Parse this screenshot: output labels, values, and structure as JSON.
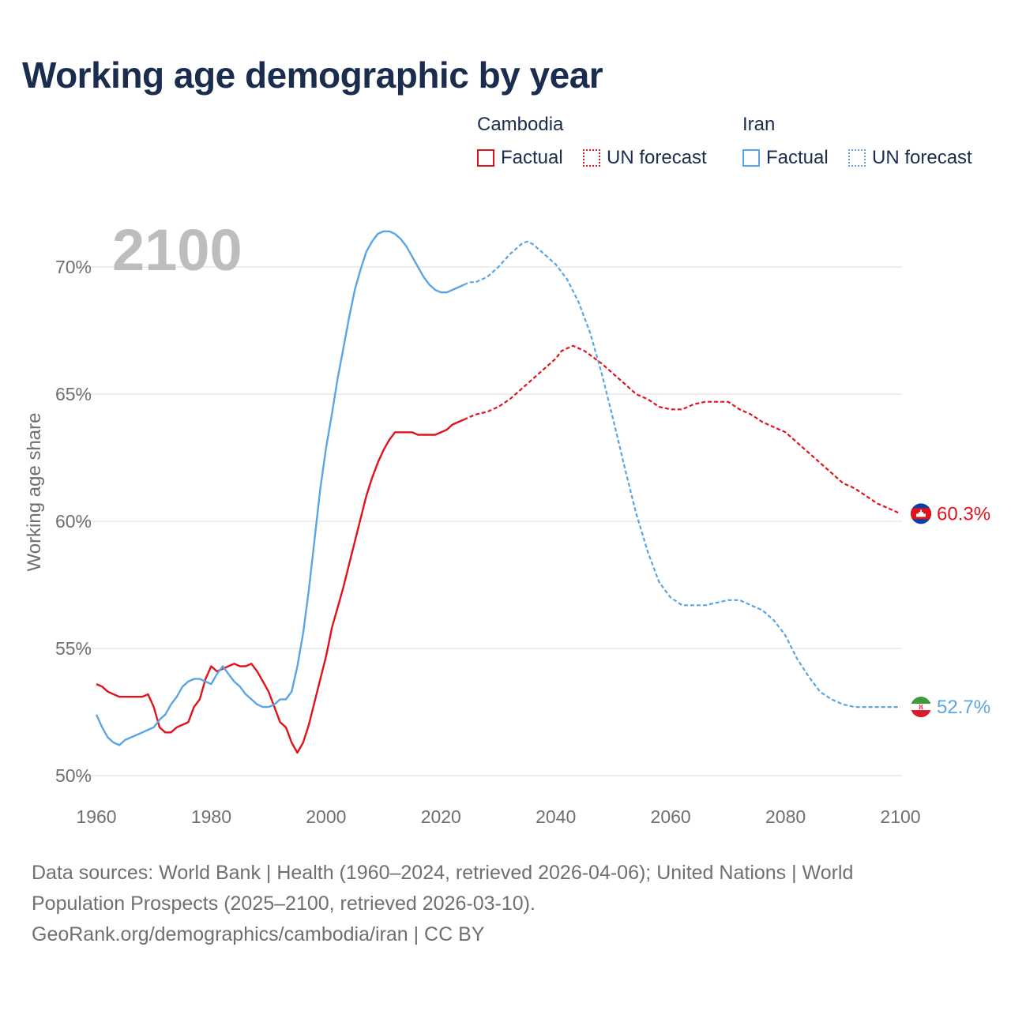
{
  "title": "Working age demographic by year",
  "year_label": "2100",
  "legend": {
    "cambodia_title": "Cambodia",
    "iran_title": "Iran",
    "factual": "Factual",
    "forecast": "UN forecast"
  },
  "footer": {
    "line1": "Data sources: World Bank | Health (1960–2024, retrieved 2026-04-06); United Nations | World",
    "line2": "Population Prospects (2025–2100, retrieved 2026-03-10).",
    "line3": "GeoRank.org/demographics/cambodia/iran | CC BY"
  },
  "colors": {
    "cambodia": "#e0131b",
    "iran": "#5aa5e3",
    "title": "#1b2d4f"
  },
  "chart_data": {
    "type": "line",
    "title": "Working age demographic by year",
    "xlabel": "",
    "ylabel": "Working age share",
    "xlim": [
      1960,
      2100
    ],
    "ylim": [
      50,
      72
    ],
    "x_ticks": [
      1960,
      1980,
      2000,
      2020,
      2040,
      2060,
      2080,
      2100
    ],
    "x_tick_labels": [
      "1960",
      "1980",
      "2000",
      "2020",
      "2040",
      "2060",
      "2080",
      "2100"
    ],
    "y_ticks": [
      50,
      55,
      60,
      65,
      70
    ],
    "y_tick_labels": [
      "50%",
      "55%",
      "60%",
      "65%",
      "70%"
    ],
    "factual_until": 2024,
    "series": [
      {
        "name": "Cambodia",
        "color": "#e0131b",
        "end_label": "60.3%",
        "points": [
          [
            1960,
            53.6
          ],
          [
            1961,
            53.5
          ],
          [
            1962,
            53.3
          ],
          [
            1963,
            53.2
          ],
          [
            1964,
            53.1
          ],
          [
            1965,
            53.1
          ],
          [
            1966,
            53.1
          ],
          [
            1967,
            53.1
          ],
          [
            1968,
            53.1
          ],
          [
            1969,
            53.2
          ],
          [
            1970,
            52.7
          ],
          [
            1971,
            51.9
          ],
          [
            1972,
            51.7
          ],
          [
            1973,
            51.7
          ],
          [
            1974,
            51.9
          ],
          [
            1975,
            52.0
          ],
          [
            1976,
            52.1
          ],
          [
            1977,
            52.7
          ],
          [
            1978,
            53.0
          ],
          [
            1979,
            53.8
          ],
          [
            1980,
            54.3
          ],
          [
            1981,
            54.1
          ],
          [
            1982,
            54.2
          ],
          [
            1983,
            54.3
          ],
          [
            1984,
            54.4
          ],
          [
            1985,
            54.3
          ],
          [
            1986,
            54.3
          ],
          [
            1987,
            54.4
          ],
          [
            1988,
            54.1
          ],
          [
            1989,
            53.7
          ],
          [
            1990,
            53.3
          ],
          [
            1991,
            52.7
          ],
          [
            1992,
            52.1
          ],
          [
            1993,
            51.9
          ],
          [
            1994,
            51.3
          ],
          [
            1995,
            50.9
          ],
          [
            1996,
            51.3
          ],
          [
            1997,
            52.0
          ],
          [
            1998,
            52.9
          ],
          [
            1999,
            53.8
          ],
          [
            2000,
            54.7
          ],
          [
            2001,
            55.8
          ],
          [
            2002,
            56.6
          ],
          [
            2003,
            57.4
          ],
          [
            2004,
            58.3
          ],
          [
            2005,
            59.2
          ],
          [
            2006,
            60.1
          ],
          [
            2007,
            61.0
          ],
          [
            2008,
            61.7
          ],
          [
            2009,
            62.3
          ],
          [
            2010,
            62.8
          ],
          [
            2011,
            63.2
          ],
          [
            2012,
            63.5
          ],
          [
            2013,
            63.5
          ],
          [
            2014,
            63.5
          ],
          [
            2015,
            63.5
          ],
          [
            2016,
            63.4
          ],
          [
            2017,
            63.4
          ],
          [
            2018,
            63.4
          ],
          [
            2019,
            63.4
          ],
          [
            2020,
            63.5
          ],
          [
            2021,
            63.6
          ],
          [
            2022,
            63.8
          ],
          [
            2023,
            63.9
          ],
          [
            2024,
            64.0
          ],
          [
            2025,
            64.1
          ],
          [
            2026,
            64.2
          ],
          [
            2028,
            64.3
          ],
          [
            2030,
            64.5
          ],
          [
            2032,
            64.8
          ],
          [
            2034,
            65.2
          ],
          [
            2036,
            65.6
          ],
          [
            2038,
            66.0
          ],
          [
            2040,
            66.4
          ],
          [
            2041,
            66.7
          ],
          [
            2043,
            66.9
          ],
          [
            2045,
            66.7
          ],
          [
            2048,
            66.2
          ],
          [
            2050,
            65.8
          ],
          [
            2052,
            65.4
          ],
          [
            2054,
            65.0
          ],
          [
            2056,
            64.8
          ],
          [
            2058,
            64.5
          ],
          [
            2060,
            64.4
          ],
          [
            2062,
            64.4
          ],
          [
            2064,
            64.6
          ],
          [
            2066,
            64.7
          ],
          [
            2068,
            64.7
          ],
          [
            2070,
            64.7
          ],
          [
            2072,
            64.4
          ],
          [
            2074,
            64.2
          ],
          [
            2076,
            63.9
          ],
          [
            2078,
            63.7
          ],
          [
            2080,
            63.5
          ],
          [
            2082,
            63.1
          ],
          [
            2084,
            62.7
          ],
          [
            2086,
            62.3
          ],
          [
            2088,
            61.9
          ],
          [
            2090,
            61.5
          ],
          [
            2092,
            61.3
          ],
          [
            2094,
            61.0
          ],
          [
            2096,
            60.7
          ],
          [
            2098,
            60.5
          ],
          [
            2100,
            60.3
          ]
        ]
      },
      {
        "name": "Iran",
        "color": "#5aa5e3",
        "end_label": "52.7%",
        "points": [
          [
            1960,
            52.4
          ],
          [
            1961,
            51.9
          ],
          [
            1962,
            51.5
          ],
          [
            1963,
            51.3
          ],
          [
            1964,
            51.2
          ],
          [
            1965,
            51.4
          ],
          [
            1966,
            51.5
          ],
          [
            1967,
            51.6
          ],
          [
            1968,
            51.7
          ],
          [
            1969,
            51.8
          ],
          [
            1970,
            51.9
          ],
          [
            1971,
            52.2
          ],
          [
            1972,
            52.4
          ],
          [
            1973,
            52.8
          ],
          [
            1974,
            53.1
          ],
          [
            1975,
            53.5
          ],
          [
            1976,
            53.7
          ],
          [
            1977,
            53.8
          ],
          [
            1978,
            53.8
          ],
          [
            1979,
            53.7
          ],
          [
            1980,
            53.6
          ],
          [
            1981,
            54.0
          ],
          [
            1982,
            54.3
          ],
          [
            1983,
            54.0
          ],
          [
            1984,
            53.7
          ],
          [
            1985,
            53.5
          ],
          [
            1986,
            53.2
          ],
          [
            1987,
            53.0
          ],
          [
            1988,
            52.8
          ],
          [
            1989,
            52.7
          ],
          [
            1990,
            52.7
          ],
          [
            1991,
            52.8
          ],
          [
            1992,
            53.0
          ],
          [
            1993,
            53.0
          ],
          [
            1994,
            53.3
          ],
          [
            1995,
            54.3
          ],
          [
            1996,
            55.6
          ],
          [
            1997,
            57.3
          ],
          [
            1998,
            59.3
          ],
          [
            1999,
            61.3
          ],
          [
            2000,
            62.9
          ],
          [
            2001,
            64.2
          ],
          [
            2002,
            65.6
          ],
          [
            2003,
            66.8
          ],
          [
            2004,
            68.0
          ],
          [
            2005,
            69.1
          ],
          [
            2006,
            69.9
          ],
          [
            2007,
            70.6
          ],
          [
            2008,
            71.0
          ],
          [
            2009,
            71.3
          ],
          [
            2010,
            71.4
          ],
          [
            2011,
            71.4
          ],
          [
            2012,
            71.3
          ],
          [
            2013,
            71.1
          ],
          [
            2014,
            70.8
          ],
          [
            2015,
            70.4
          ],
          [
            2016,
            70.0
          ],
          [
            2017,
            69.6
          ],
          [
            2018,
            69.3
          ],
          [
            2019,
            69.1
          ],
          [
            2020,
            69.0
          ],
          [
            2021,
            69.0
          ],
          [
            2022,
            69.1
          ],
          [
            2023,
            69.2
          ],
          [
            2024,
            69.3
          ],
          [
            2025,
            69.4
          ],
          [
            2026,
            69.4
          ],
          [
            2028,
            69.6
          ],
          [
            2030,
            70.0
          ],
          [
            2032,
            70.5
          ],
          [
            2034,
            70.9
          ],
          [
            2035,
            71.0
          ],
          [
            2036,
            70.9
          ],
          [
            2038,
            70.5
          ],
          [
            2040,
            70.1
          ],
          [
            2042,
            69.5
          ],
          [
            2044,
            68.6
          ],
          [
            2046,
            67.4
          ],
          [
            2048,
            65.8
          ],
          [
            2050,
            64.0
          ],
          [
            2052,
            62.1
          ],
          [
            2054,
            60.3
          ],
          [
            2056,
            58.8
          ],
          [
            2058,
            57.6
          ],
          [
            2060,
            57.0
          ],
          [
            2062,
            56.7
          ],
          [
            2064,
            56.7
          ],
          [
            2066,
            56.7
          ],
          [
            2068,
            56.8
          ],
          [
            2070,
            56.9
          ],
          [
            2072,
            56.9
          ],
          [
            2074,
            56.7
          ],
          [
            2076,
            56.5
          ],
          [
            2078,
            56.1
          ],
          [
            2080,
            55.5
          ],
          [
            2082,
            54.6
          ],
          [
            2084,
            53.9
          ],
          [
            2086,
            53.3
          ],
          [
            2088,
            53.0
          ],
          [
            2090,
            52.8
          ],
          [
            2092,
            52.7
          ],
          [
            2094,
            52.7
          ],
          [
            2096,
            52.7
          ],
          [
            2098,
            52.7
          ],
          [
            2100,
            52.7
          ]
        ]
      }
    ]
  }
}
